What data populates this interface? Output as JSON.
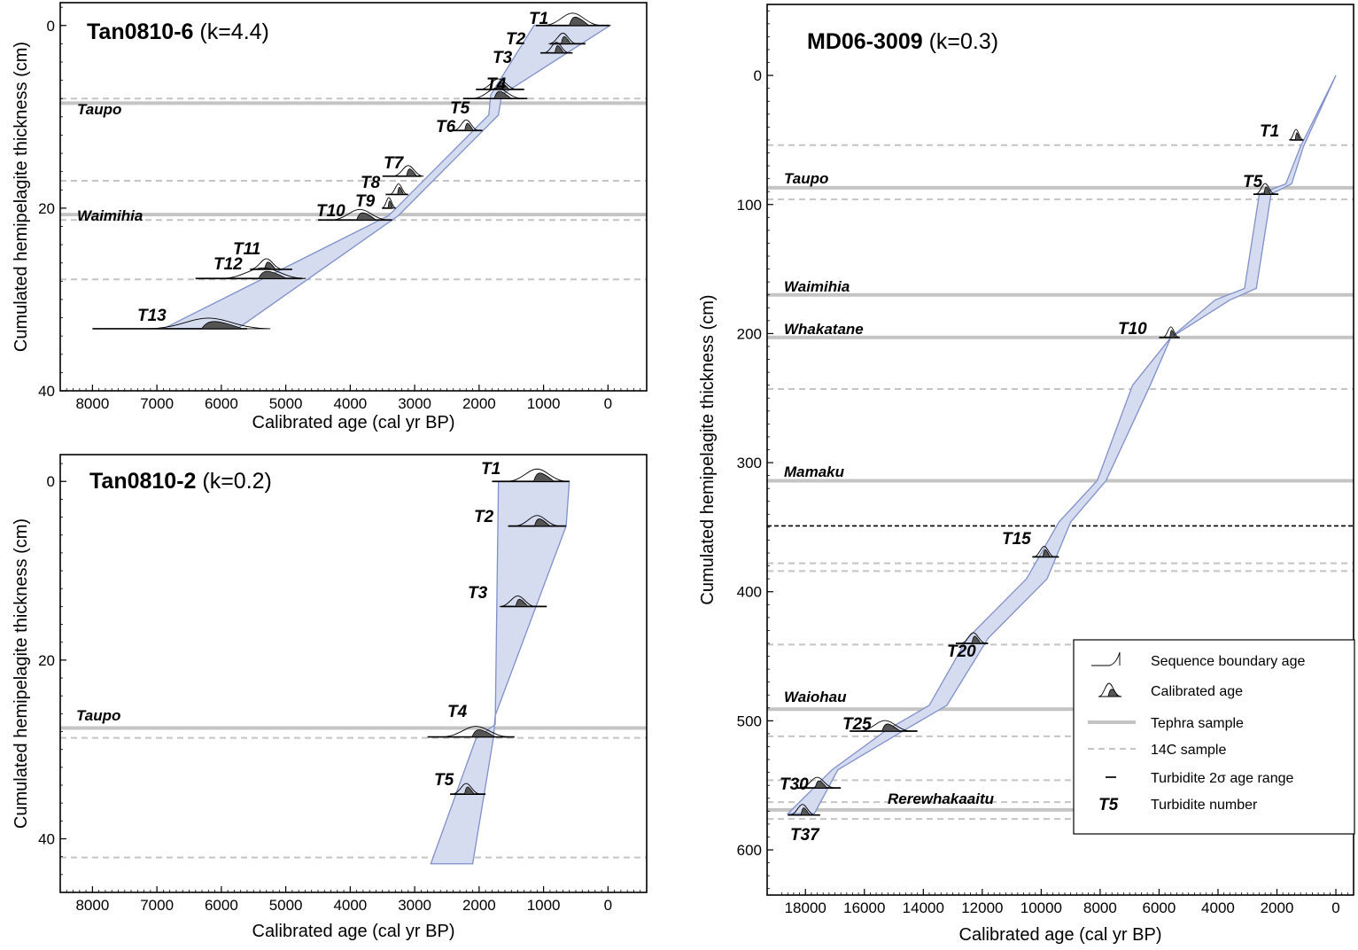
{
  "chart_data": [
    {
      "type": "line",
      "core": "Tan0810-6",
      "k_label": "(k=4.4)",
      "xlabel": "Calibrated age (cal yr BP)",
      "ylabel": "Cumulated hemipelagite thickness (cm)",
      "xlim": [
        8500,
        -600
      ],
      "ylim": [
        -2.5,
        40
      ],
      "xticks": [
        8000,
        7000,
        6000,
        5000,
        4000,
        3000,
        2000,
        1000,
        0
      ],
      "yticks": [
        0,
        20,
        40
      ],
      "tephra": [
        {
          "name": "Taupo",
          "depth": 8.5
        },
        {
          "name": "Waimihia",
          "depth": 20.7
        }
      ],
      "c14_samples": [
        8,
        17,
        21.3,
        27.8
      ],
      "band_left": [
        [
          0,
          0
        ],
        [
          1150,
          0
        ],
        [
          1820,
          7.6
        ],
        [
          1850,
          9.8
        ],
        [
          3400,
          20.8
        ],
        [
          6900,
          33.2
        ]
      ],
      "band_right": [
        [
          -30,
          0
        ],
        [
          1650,
          7.6
        ],
        [
          1700,
          9.8
        ],
        [
          3250,
          20.8
        ],
        [
          5750,
          33.2
        ]
      ],
      "turbidites": [
        {
          "label": "T1",
          "depth": 0,
          "age": 550,
          "range": [
            1120,
            -30
          ]
        },
        {
          "label": "T2",
          "depth": 2.0,
          "age": 700,
          "range": [
            900,
            350
          ]
        },
        {
          "label": "T3",
          "depth": 3.0,
          "age": 800,
          "range": [
            1050,
            550
          ]
        },
        {
          "label": "T4",
          "depth": 7.0,
          "age": 1700,
          "range": [
            2050,
            1300
          ]
        },
        {
          "label": "T5",
          "depth": 8.0,
          "age": 1720,
          "range": [
            2250,
            1250
          ]
        },
        {
          "label": "T6",
          "depth": 11.5,
          "age": 2200,
          "range": [
            2450,
            1950
          ]
        },
        {
          "label": "T7",
          "depth": 16.5,
          "age": 3100,
          "range": [
            3500,
            2900
          ]
        },
        {
          "label": "T8",
          "depth": 18.5,
          "age": 3250,
          "range": [
            3450,
            3100
          ]
        },
        {
          "label": "T9",
          "depth": 20.0,
          "age": 3400,
          "range": [
            3500,
            3350
          ]
        },
        {
          "label": "T10",
          "depth": 21.3,
          "age": 3850,
          "range": [
            4500,
            3350
          ]
        },
        {
          "label": "T11",
          "depth": 26.7,
          "age": 5300,
          "range": [
            5550,
            4900
          ]
        },
        {
          "label": "T12",
          "depth": 27.7,
          "age": 5350,
          "range": [
            6400,
            4750
          ]
        },
        {
          "label": "T13",
          "depth": 33.2,
          "age": 6200,
          "range": [
            8000,
            5600
          ]
        }
      ]
    },
    {
      "type": "line",
      "core": "Tan0810-2",
      "k_label": "(k=0.2)",
      "xlabel": "Calibrated age (cal yr BP)",
      "ylabel": "Cumulated hemipelagite thickness (cm)",
      "xlim": [
        8500,
        -600
      ],
      "ylim": [
        -3,
        46
      ],
      "xticks": [
        8000,
        7000,
        6000,
        5000,
        4000,
        3000,
        2000,
        1000,
        0
      ],
      "yticks": [
        0,
        20,
        40
      ],
      "tephra": [
        {
          "name": "Taupo",
          "depth": 27.6
        }
      ],
      "c14_samples": [
        28.7,
        42.1
      ],
      "band_left": [
        [
          650,
          0
        ],
        [
          1700,
          0
        ],
        [
          1750,
          27.2
        ],
        [
          2050,
          28.8
        ],
        [
          2750,
          42.8
        ]
      ],
      "band_right": [
        [
          600,
          0
        ],
        [
          650,
          5
        ],
        [
          1750,
          26.2
        ],
        [
          1780,
          28.8
        ],
        [
          2100,
          42.8
        ]
      ],
      "turbidites": [
        {
          "label": "T1",
          "depth": 0,
          "age": 1100,
          "range": [
            1800,
            600
          ]
        },
        {
          "label": "T2",
          "depth": 5.0,
          "age": 1100,
          "range": [
            1550,
            650
          ]
        },
        {
          "label": "T3",
          "depth": 14.0,
          "age": 1400,
          "range": [
            1660,
            950
          ]
        },
        {
          "label": "T4",
          "depth": 28.6,
          "age": 2050,
          "range": [
            2800,
            1450
          ]
        },
        {
          "label": "T5",
          "depth": 35.0,
          "age": 2200,
          "range": [
            2450,
            1900
          ]
        }
      ]
    },
    {
      "type": "line",
      "core": "MD06-3009",
      "k_label": "(k=0.3)",
      "xlabel": "Calibrated age (cal yr BP)",
      "ylabel": "Cumulated hemipelagite thickness (cm)",
      "xlim": [
        19300,
        -600
      ],
      "ylim": [
        -55,
        635
      ],
      "xticks": [
        18000,
        16000,
        14000,
        12000,
        10000,
        8000,
        6000,
        4000,
        2000,
        0
      ],
      "yticks": [
        0,
        100,
        200,
        300,
        400,
        500,
        600
      ],
      "tephra": [
        {
          "name": "Taupo",
          "depth": 87
        },
        {
          "name": "Waimihia",
          "depth": 170
        },
        {
          "name": "Whakatane",
          "depth": 203
        },
        {
          "name": "Mamaku",
          "depth": 314
        },
        {
          "name": "Waiohau",
          "depth": 491
        },
        {
          "name": "Rerewhakaaitu",
          "depth": 569
        }
      ],
      "c14_samples": [
        54,
        96,
        243,
        378,
        384,
        441,
        512,
        546,
        563,
        576
      ],
      "boundary_depth": 349,
      "band_left": [
        [
          0,
          0
        ],
        [
          1200,
          55
        ],
        [
          1700,
          84
        ],
        [
          2600,
          92
        ],
        [
          3100,
          165
        ],
        [
          4100,
          174
        ],
        [
          5600,
          203
        ],
        [
          6900,
          240
        ],
        [
          8100,
          314
        ],
        [
          9400,
          346
        ],
        [
          10500,
          390
        ],
        [
          12500,
          436
        ],
        [
          13800,
          488
        ],
        [
          15300,
          508
        ],
        [
          17100,
          538
        ],
        [
          18600,
          572
        ]
      ],
      "band_right": [
        [
          0,
          0
        ],
        [
          1100,
          55
        ],
        [
          1500,
          84
        ],
        [
          2200,
          92
        ],
        [
          2700,
          165
        ],
        [
          3600,
          174
        ],
        [
          5600,
          203
        ],
        [
          6300,
          240
        ],
        [
          7800,
          314
        ],
        [
          9000,
          346
        ],
        [
          9800,
          390
        ],
        [
          11800,
          436
        ],
        [
          13200,
          488
        ],
        [
          14700,
          508
        ],
        [
          16900,
          538
        ],
        [
          17700,
          572
        ]
      ],
      "turbidites": [
        {
          "label": "T1",
          "depth": 50,
          "age": 1350,
          "range": [
            1550,
            1100
          ]
        },
        {
          "label": "T5",
          "depth": 92,
          "age": 2400,
          "range": [
            2800,
            1950
          ]
        },
        {
          "label": "T10",
          "depth": 203,
          "age": 5600,
          "range": [
            6000,
            5300
          ]
        },
        {
          "label": "T15",
          "depth": 373,
          "age": 9900,
          "range": [
            10300,
            9400
          ]
        },
        {
          "label": "T20",
          "depth": 440,
          "age": 12300,
          "range": [
            12900,
            11800
          ]
        },
        {
          "label": "T25",
          "depth": 508,
          "age": 15300,
          "range": [
            16500,
            14200
          ]
        },
        {
          "label": "T30",
          "depth": 552,
          "age": 17600,
          "range": [
            18300,
            16800
          ]
        },
        {
          "label": "T37",
          "depth": 573,
          "age": 18100,
          "range": [
            18600,
            17500
          ]
        }
      ]
    }
  ],
  "legend": {
    "items": [
      {
        "key": "sequence",
        "label": "Sequence boundary age"
      },
      {
        "key": "calibrated",
        "label": "Calibrated age"
      },
      {
        "key": "tephra",
        "label": "Tephra sample"
      },
      {
        "key": "c14",
        "label": "14C sample"
      },
      {
        "key": "range",
        "label": "Turbidite 2σ age range"
      },
      {
        "key": "number",
        "label": "Turbidite number",
        "symbol": "T5"
      }
    ]
  },
  "colors": {
    "band_fill": "#d6dcef",
    "band_stroke": "#7f90c9",
    "tephra": "#c4c4c4",
    "pdf_fill": "#555555"
  }
}
